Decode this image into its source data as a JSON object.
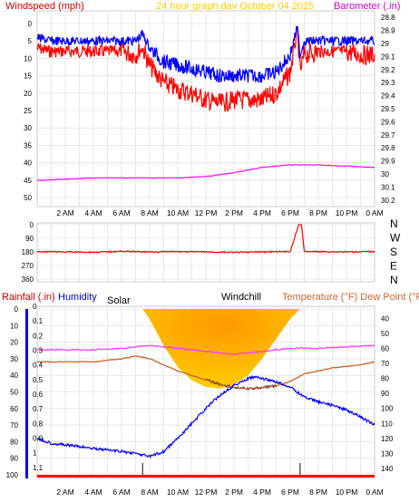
{
  "header": {
    "title": "24 hour graph.dav   October 04 2025"
  },
  "colors": {
    "wind_gust": "#ff0000",
    "wind_avg": "#0000ff",
    "barometer": "#ff00ff",
    "direction": "#ff0000",
    "rainfall": "#ff0000",
    "humidity": "#0000ff",
    "solar": "#ffcc00",
    "solar_core": "#ff9900",
    "windchill": "#000000",
    "temperature": "#c86428",
    "dewpoint": "#ff33ff",
    "left_axis_label": "#cc0000",
    "right_axis_label": "#cc00cc",
    "temp_axis_label": "#cc6633",
    "title": "#ffcc00",
    "grid": "#d9d9d9"
  },
  "chart_data": [
    {
      "type": "line",
      "ylabel": "Windspeed (mph)",
      "y2label": "Barometer (.in)",
      "ylim": [
        0,
        50
      ],
      "y2lim": [
        28.75,
        30.25
      ],
      "yticks": [
        "0",
        "5",
        "10",
        "15",
        "20",
        "25",
        "30",
        "35",
        "40",
        "45",
        "50"
      ],
      "y2ticks": [
        "28.8",
        "28.9",
        "29",
        "29.1",
        "29.2",
        "29.3",
        "29.4",
        "29.5",
        "29.6",
        "29.7",
        "29.8",
        "29.9",
        "30",
        "30.1",
        "30.2"
      ],
      "xticks": [
        "2 AM",
        "4 AM",
        "6 AM",
        "8 AM",
        "10 AM",
        "12 PM",
        "2 PM",
        "4 PM",
        "6 PM",
        "8 PM",
        "10 PM",
        "0 AM"
      ],
      "grid": true,
      "series": [
        {
          "name": "Windspeed gust",
          "x": [
            0,
            1,
            2,
            3,
            4,
            5,
            6,
            7,
            7.5,
            8,
            9,
            10,
            11,
            12,
            13,
            14,
            15,
            16,
            17,
            18,
            18.5,
            18.7,
            19,
            20,
            21,
            22,
            23,
            24
          ],
          "y": [
            7,
            8,
            8,
            8,
            8,
            8,
            8,
            9,
            7,
            12,
            17,
            19,
            20,
            22,
            23,
            22,
            22,
            22,
            20,
            14,
            2,
            14,
            9,
            8,
            8,
            8,
            9,
            9
          ]
        },
        {
          "name": "Windspeed avg",
          "x": [
            0,
            1,
            2,
            3,
            4,
            5,
            6,
            7,
            7.5,
            8,
            9,
            10,
            11,
            12,
            13,
            14,
            15,
            16,
            17,
            18,
            18.5,
            18.7,
            19,
            20,
            21,
            22,
            23,
            24
          ],
          "y": [
            4,
            5,
            5,
            5,
            5,
            5,
            5,
            5,
            3,
            7,
            11,
            12,
            13,
            14,
            15,
            15,
            15,
            15,
            14,
            9,
            1,
            9,
            5,
            5,
            5,
            5,
            5,
            5
          ]
        },
        {
          "name": "Barometer",
          "axis": "y2",
          "x": [
            0,
            2,
            4,
            6,
            8,
            10,
            12,
            14,
            16,
            18,
            20,
            22,
            24
          ],
          "y": [
            30.05,
            30.04,
            30.03,
            30.03,
            30.03,
            30.03,
            30.02,
            29.99,
            29.95,
            29.93,
            29.93,
            29.94,
            29.95
          ]
        }
      ]
    },
    {
      "type": "line",
      "ylim": [
        0,
        360
      ],
      "yticks": [
        "0",
        "90",
        "180",
        "270",
        "360"
      ],
      "compass": [
        "N",
        "W",
        "S",
        "E",
        "N"
      ],
      "xticks": [
        "2 AM",
        "4 AM",
        "6 AM",
        "8 AM",
        "10 AM",
        "12 PM",
        "2 PM",
        "4 PM",
        "6 PM",
        "8 PM",
        "10 PM",
        "0 AM"
      ],
      "grid": true,
      "series": [
        {
          "name": "Wind direction",
          "x": [
            0,
            2,
            4,
            6,
            8,
            10,
            12,
            14,
            16,
            18,
            18.6,
            18.8,
            19,
            20,
            22,
            24
          ],
          "y": [
            178,
            180,
            182,
            176,
            180,
            178,
            180,
            183,
            180,
            178,
            0,
            0,
            178,
            178,
            180,
            178
          ]
        }
      ]
    },
    {
      "type": "line",
      "ylabel": "Rainfall (.in)",
      "humidity_label": "Humidity",
      "solar_label": "Solar",
      "windchill_label": "Windchill",
      "y2label": "Temperature (°F) Dew Point (°F)",
      "ylim_humidity": [
        0,
        100
      ],
      "ylim_rain": [
        0,
        1.15
      ],
      "y2lim": [
        32,
        146
      ],
      "humidity_ticks": [
        "0",
        "10",
        "20",
        "30",
        "40",
        "50",
        "60",
        "70",
        "80",
        "90",
        "100"
      ],
      "rain_ticks": [
        "0",
        "0.1",
        "0.2",
        "0.3",
        "0.4",
        "0.5",
        "0.6",
        "0.7",
        "0.8",
        "0.9",
        "1",
        "1.1"
      ],
      "temp_ticks": [
        "40",
        "50",
        "60",
        "70",
        "80",
        "90",
        "100",
        "110",
        "120",
        "130",
        "140"
      ],
      "xticks": [
        "2 AM",
        "4 AM",
        "6 AM",
        "8 AM",
        "10 AM",
        "12 PM",
        "2 PM",
        "4 PM",
        "6 PM",
        "8 PM",
        "10 PM",
        "0 AM"
      ],
      "grid": true,
      "series": [
        {
          "name": "Humidity",
          "x": [
            0,
            1,
            2,
            3,
            4,
            5,
            6,
            7,
            8,
            9,
            10,
            11,
            12,
            13,
            14,
            15,
            15.5,
            16,
            17,
            18,
            19,
            20,
            21,
            22,
            23,
            24
          ],
          "y": [
            78,
            81,
            82,
            83,
            84,
            85,
            86,
            87,
            89,
            86,
            78,
            69,
            60,
            52,
            46,
            42,
            41,
            42,
            44,
            47,
            53,
            56,
            58,
            61,
            65,
            70
          ]
        },
        {
          "name": "Temperature",
          "axis": "y2",
          "x": [
            0,
            1,
            2,
            3,
            4,
            5,
            6,
            7,
            8,
            9,
            10,
            11,
            12,
            13,
            14,
            15,
            16,
            17,
            18,
            19,
            20,
            21,
            22,
            23,
            24
          ],
          "y": [
            69,
            69,
            69,
            69,
            69,
            68,
            67,
            65,
            67,
            71,
            75,
            78,
            81,
            84,
            86,
            87,
            86,
            85,
            82,
            77,
            75,
            73,
            72,
            71,
            69
          ]
        },
        {
          "name": "Dew Point",
          "axis": "y2",
          "x": [
            0,
            2,
            4,
            6,
            8,
            10,
            12,
            14,
            16,
            18,
            20,
            22,
            24
          ],
          "y": [
            61,
            61,
            61,
            60,
            58,
            60,
            62,
            64,
            62,
            60,
            60,
            59,
            58
          ]
        },
        {
          "name": "Windchill",
          "axis": "y2",
          "x": [
            12,
            13,
            14,
            15,
            16,
            17
          ],
          "y": [
            81,
            84,
            86,
            87,
            86,
            85
          ]
        },
        {
          "name": "Solar",
          "x": [
            7.5,
            8,
            9,
            10,
            11,
            12,
            13,
            14,
            15,
            16,
            17,
            18,
            18.7
          ],
          "y": [
            0,
            6,
            22,
            35,
            43,
            47,
            48,
            46,
            40,
            30,
            18,
            6,
            0
          ]
        },
        {
          "name": "Rainfall",
          "x": [
            0,
            24
          ],
          "y": [
            0,
            0
          ]
        }
      ]
    }
  ]
}
